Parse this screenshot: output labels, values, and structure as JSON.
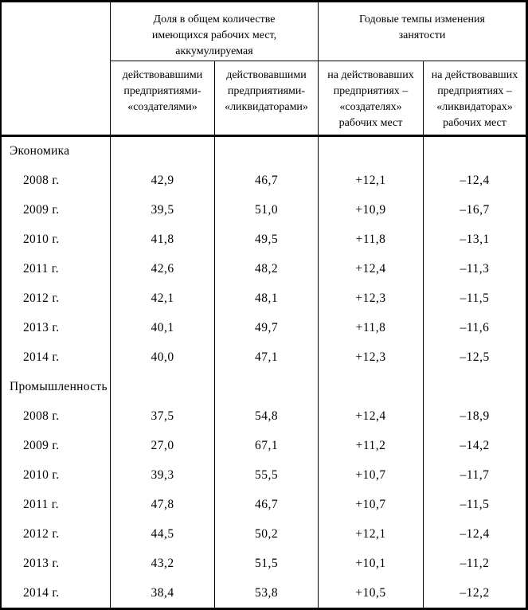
{
  "table": {
    "header": {
      "corner": "",
      "group_share": "Доля в общем количестве\nимеющихся рабочих мест,\nаккумулируемая",
      "group_rates": "Годовые темпы изменения\nзанятости",
      "sub_creators_share": "действовавшими\nпредприятиями-\n«создателями»",
      "sub_liquidators_share": "действовавшими\nпредприятиями-\n«ликвидаторами»",
      "sub_creators_rate": "на действовавших\nпредприятиях –\n«создателях»\nрабочих мест",
      "sub_liquidators_rate": "на действовавших\nпредприятиях –\n«ликвидаторах»\nрабочих мест"
    },
    "rows": [
      {
        "label": "Экономика",
        "kind": "section",
        "values": [
          "",
          "",
          "",
          ""
        ]
      },
      {
        "label": "2008 г.",
        "kind": "year",
        "values": [
          "42,9",
          "46,7",
          "+12,1",
          "–12,4"
        ]
      },
      {
        "label": "2009 г.",
        "kind": "year",
        "values": [
          "39,5",
          "51,0",
          "+10,9",
          "–16,7"
        ]
      },
      {
        "label": "2010 г.",
        "kind": "year",
        "values": [
          "41,8",
          "49,5",
          "+11,8",
          "–13,1"
        ]
      },
      {
        "label": "2011 г.",
        "kind": "year",
        "values": [
          "42,6",
          "48,2",
          "+12,4",
          "–11,3"
        ]
      },
      {
        "label": "2012 г.",
        "kind": "year",
        "values": [
          "42,1",
          "48,1",
          "+12,3",
          "–11,5"
        ]
      },
      {
        "label": "2013 г.",
        "kind": "year",
        "values": [
          "40,1",
          "49,7",
          "+11,8",
          "–11,6"
        ]
      },
      {
        "label": "2014 г.",
        "kind": "year",
        "values": [
          "40,0",
          "47,1",
          "+12,3",
          "–12,5"
        ]
      },
      {
        "label": "Промышленность",
        "kind": "section",
        "values": [
          "",
          "",
          "",
          ""
        ]
      },
      {
        "label": "2008 г.",
        "kind": "year",
        "values": [
          "37,5",
          "54,8",
          "+12,4",
          "–18,9"
        ]
      },
      {
        "label": "2009 г.",
        "kind": "year",
        "values": [
          "27,0",
          "67,1",
          "+11,2",
          "–14,2"
        ]
      },
      {
        "label": "2010 г.",
        "kind": "year",
        "values": [
          "39,3",
          "55,5",
          "+10,7",
          "–11,7"
        ]
      },
      {
        "label": "2011 г.",
        "kind": "year",
        "values": [
          "47,8",
          "46,7",
          "+10,7",
          "–11,5"
        ]
      },
      {
        "label": "2012 г.",
        "kind": "year",
        "values": [
          "44,5",
          "50,2",
          "+12,1",
          "–12,4"
        ]
      },
      {
        "label": "2013 г.",
        "kind": "year",
        "values": [
          "43,2",
          "51,5",
          "+10,1",
          "–11,2"
        ]
      },
      {
        "label": "2014 г.",
        "kind": "year",
        "values": [
          "38,4",
          "53,8",
          "+10,5",
          "–12,2"
        ]
      }
    ]
  }
}
